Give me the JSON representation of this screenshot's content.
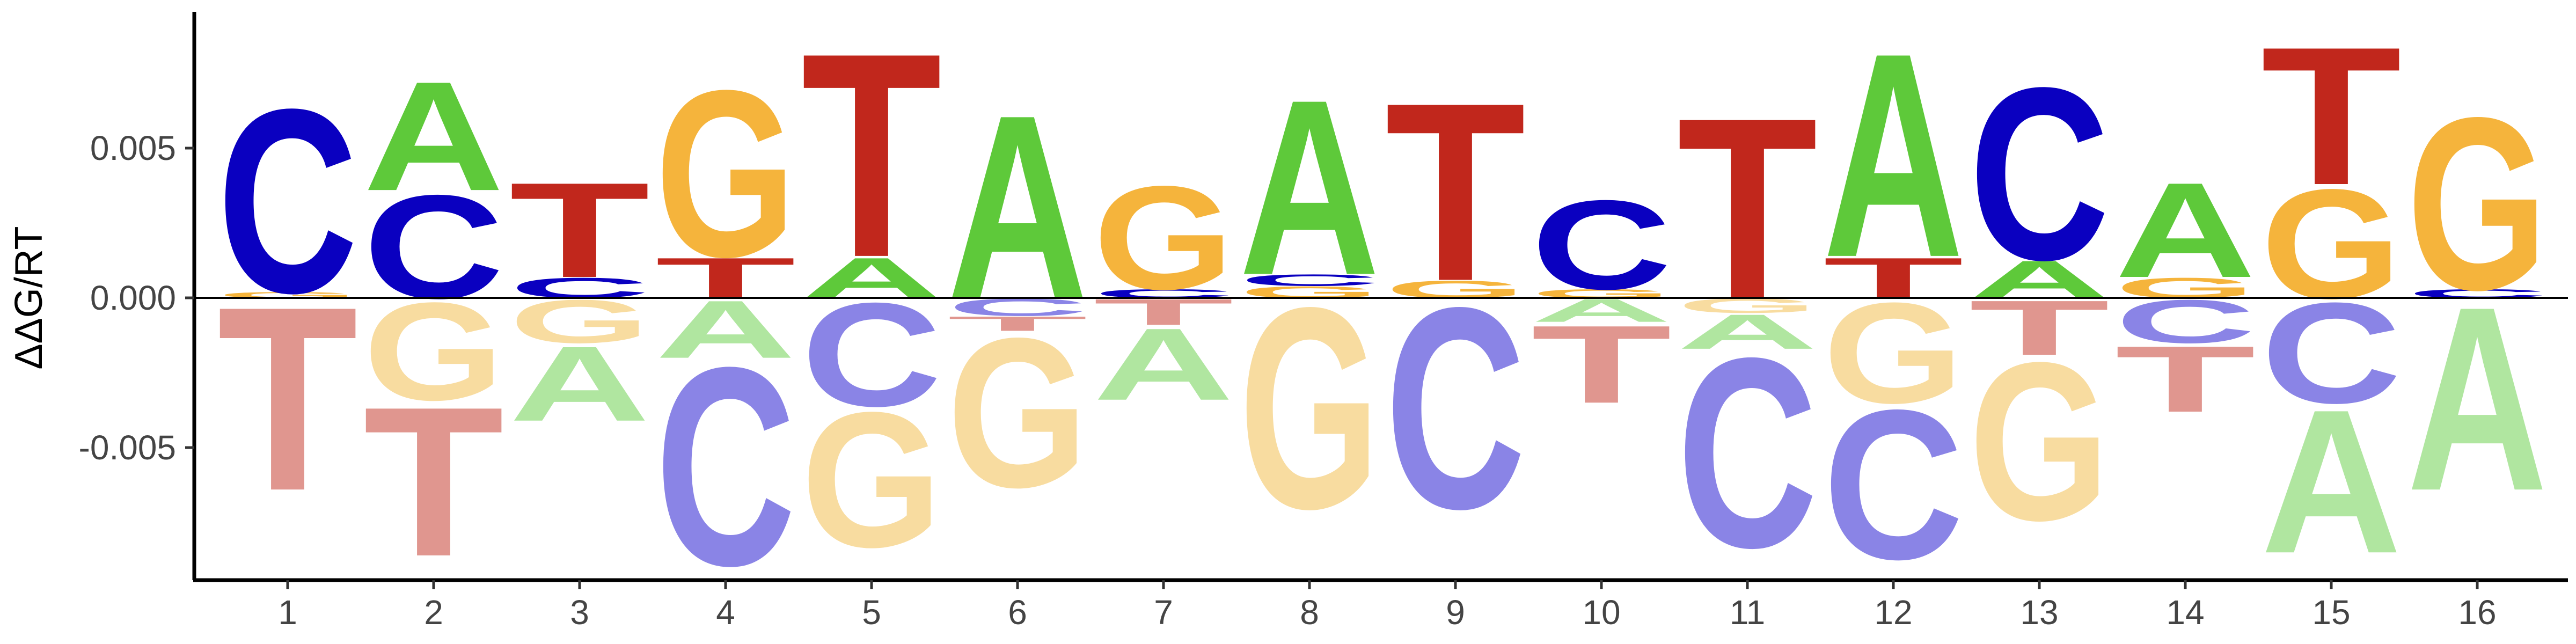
{
  "chart_data": {
    "type": "sequence_logo",
    "title": "",
    "xlabel": "",
    "ylabel": "ΔΔG/RT",
    "ylim": [
      -0.0095,
      0.0095
    ],
    "yticks": [
      -0.005,
      0.0,
      0.005
    ],
    "ytick_labels": [
      "-0.005",
      "0.000",
      "0.005"
    ],
    "xticks": [
      "1",
      "2",
      "3",
      "4",
      "5",
      "6",
      "7",
      "8",
      "9",
      "10",
      "11",
      "12",
      "13",
      "14",
      "15",
      "16"
    ],
    "grid": false,
    "legend": "none",
    "colors": {
      "A": "#5ec93a",
      "C": "#0a00c0",
      "G": "#f5b43c",
      "T": "#c1271c",
      "A_neg": "#b0e6a0",
      "C_neg": "#8a84e6",
      "G_neg": "#f8dca0",
      "T_neg": "#e0968f"
    },
    "positions": [
      {
        "position": 1,
        "letters": [
          {
            "letter": "G",
            "value": 0.0002
          },
          {
            "letter": "C",
            "value": 0.0064
          },
          {
            "letter": "T",
            "value": -0.0064
          }
        ]
      },
      {
        "position": 2,
        "letters": [
          {
            "letter": "C",
            "value": 0.0036
          },
          {
            "letter": "A",
            "value": 0.0038
          },
          {
            "letter": "G",
            "value": -0.0034
          },
          {
            "letter": "T",
            "value": -0.0052
          }
        ]
      },
      {
        "position": 3,
        "letters": [
          {
            "letter": "C",
            "value": 0.0007
          },
          {
            "letter": "T",
            "value": 0.0033
          },
          {
            "letter": "G",
            "value": -0.0015
          },
          {
            "letter": "A",
            "value": -0.0026
          }
        ]
      },
      {
        "position": 4,
        "letters": [
          {
            "letter": "T",
            "value": 0.0014
          },
          {
            "letter": "G",
            "value": 0.0058
          },
          {
            "letter": "A",
            "value": -0.002
          },
          {
            "letter": "C",
            "value": -0.0069
          }
        ]
      },
      {
        "position": 5,
        "letters": [
          {
            "letter": "A",
            "value": 0.0014
          },
          {
            "letter": "T",
            "value": 0.0071
          },
          {
            "letter": "C",
            "value": -0.0036
          },
          {
            "letter": "G",
            "value": -0.0047
          }
        ]
      },
      {
        "position": 6,
        "letters": [
          {
            "letter": "A",
            "value": 0.0064
          },
          {
            "letter": "C",
            "value": -0.0006
          },
          {
            "letter": "T",
            "value": -0.0005
          },
          {
            "letter": "G",
            "value": -0.0052
          }
        ]
      },
      {
        "position": 7,
        "letters": [
          {
            "letter": "C",
            "value": 0.0003
          },
          {
            "letter": "G",
            "value": 0.0036
          },
          {
            "letter": "T",
            "value": -0.0009
          },
          {
            "letter": "A",
            "value": -0.0025
          }
        ]
      },
      {
        "position": 8,
        "letters": [
          {
            "letter": "G",
            "value": 0.0004
          },
          {
            "letter": "C",
            "value": 0.0004
          },
          {
            "letter": "A",
            "value": 0.0061
          },
          {
            "letter": "G",
            "value": -0.007
          }
        ]
      },
      {
        "position": 9,
        "letters": [
          {
            "letter": "G",
            "value": 0.0006
          },
          {
            "letter": "T",
            "value": 0.0062
          },
          {
            "letter": "C",
            "value": -0.007
          }
        ]
      },
      {
        "position": 10,
        "letters": [
          {
            "letter": "G",
            "value": 0.0003
          },
          {
            "letter": "C",
            "value": 0.0031
          },
          {
            "letter": "A",
            "value": -0.0008
          },
          {
            "letter": "T",
            "value": -0.0027
          }
        ]
      },
      {
        "position": 11,
        "letters": [
          {
            "letter": "T",
            "value": 0.0063
          },
          {
            "letter": "G",
            "value": -0.0005
          },
          {
            "letter": "A",
            "value": -0.0012
          },
          {
            "letter": "C",
            "value": -0.0066
          }
        ]
      },
      {
        "position": 12,
        "letters": [
          {
            "letter": "T",
            "value": 0.0014
          },
          {
            "letter": "A",
            "value": 0.0071
          },
          {
            "letter": "G",
            "value": -0.0035
          },
          {
            "letter": "C",
            "value": -0.0052
          }
        ]
      },
      {
        "position": 13,
        "letters": [
          {
            "letter": "A",
            "value": 0.0013
          },
          {
            "letter": "C",
            "value": 0.006
          },
          {
            "letter": "T",
            "value": -0.0019
          },
          {
            "letter": "G",
            "value": -0.0055
          }
        ]
      },
      {
        "position": 14,
        "letters": [
          {
            "letter": "G",
            "value": 0.0007
          },
          {
            "letter": "A",
            "value": 0.0033
          },
          {
            "letter": "C",
            "value": -0.0015
          },
          {
            "letter": "T",
            "value": -0.0023
          }
        ]
      },
      {
        "position": 15,
        "letters": [
          {
            "letter": "G",
            "value": 0.0038
          },
          {
            "letter": "T",
            "value": 0.0048
          },
          {
            "letter": "C",
            "value": -0.0035
          },
          {
            "letter": "A",
            "value": -0.005
          }
        ]
      },
      {
        "position": 16,
        "letters": [
          {
            "letter": "C",
            "value": 0.0003
          },
          {
            "letter": "G",
            "value": 0.006
          },
          {
            "letter": "A",
            "value": -0.0064
          }
        ]
      }
    ]
  }
}
